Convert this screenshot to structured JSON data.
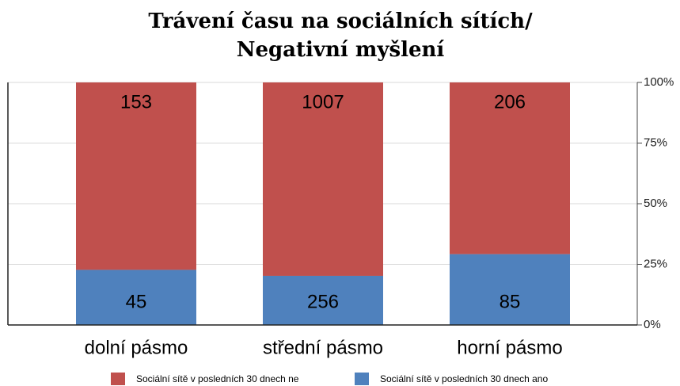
{
  "chart_data": {
    "type": "bar",
    "stacked": "percent",
    "title": [
      "Trávení času na sociálních sítích/",
      "Negativní myšlení"
    ],
    "categories": [
      "dolní pásmo",
      "střední pásmo",
      "horní pásmo"
    ],
    "series": [
      {
        "name": "Sociální sítě v posledních 30 dnech ne",
        "color": "#c0504d",
        "values": [
          153,
          1007,
          206
        ]
      },
      {
        "name": "Sociální sítě v posledních 30 dnech ano",
        "color": "#4f81bd",
        "values": [
          45,
          256,
          85
        ]
      }
    ],
    "ylim": [
      0,
      100
    ],
    "yticks": [
      {
        "value": 0,
        "label": "0%"
      },
      {
        "value": 25,
        "label": "25%"
      },
      {
        "value": 50,
        "label": "50%"
      },
      {
        "value": 75,
        "label": "75%"
      },
      {
        "value": 100,
        "label": "100%"
      }
    ],
    "grid": true,
    "legend": "bottom"
  }
}
